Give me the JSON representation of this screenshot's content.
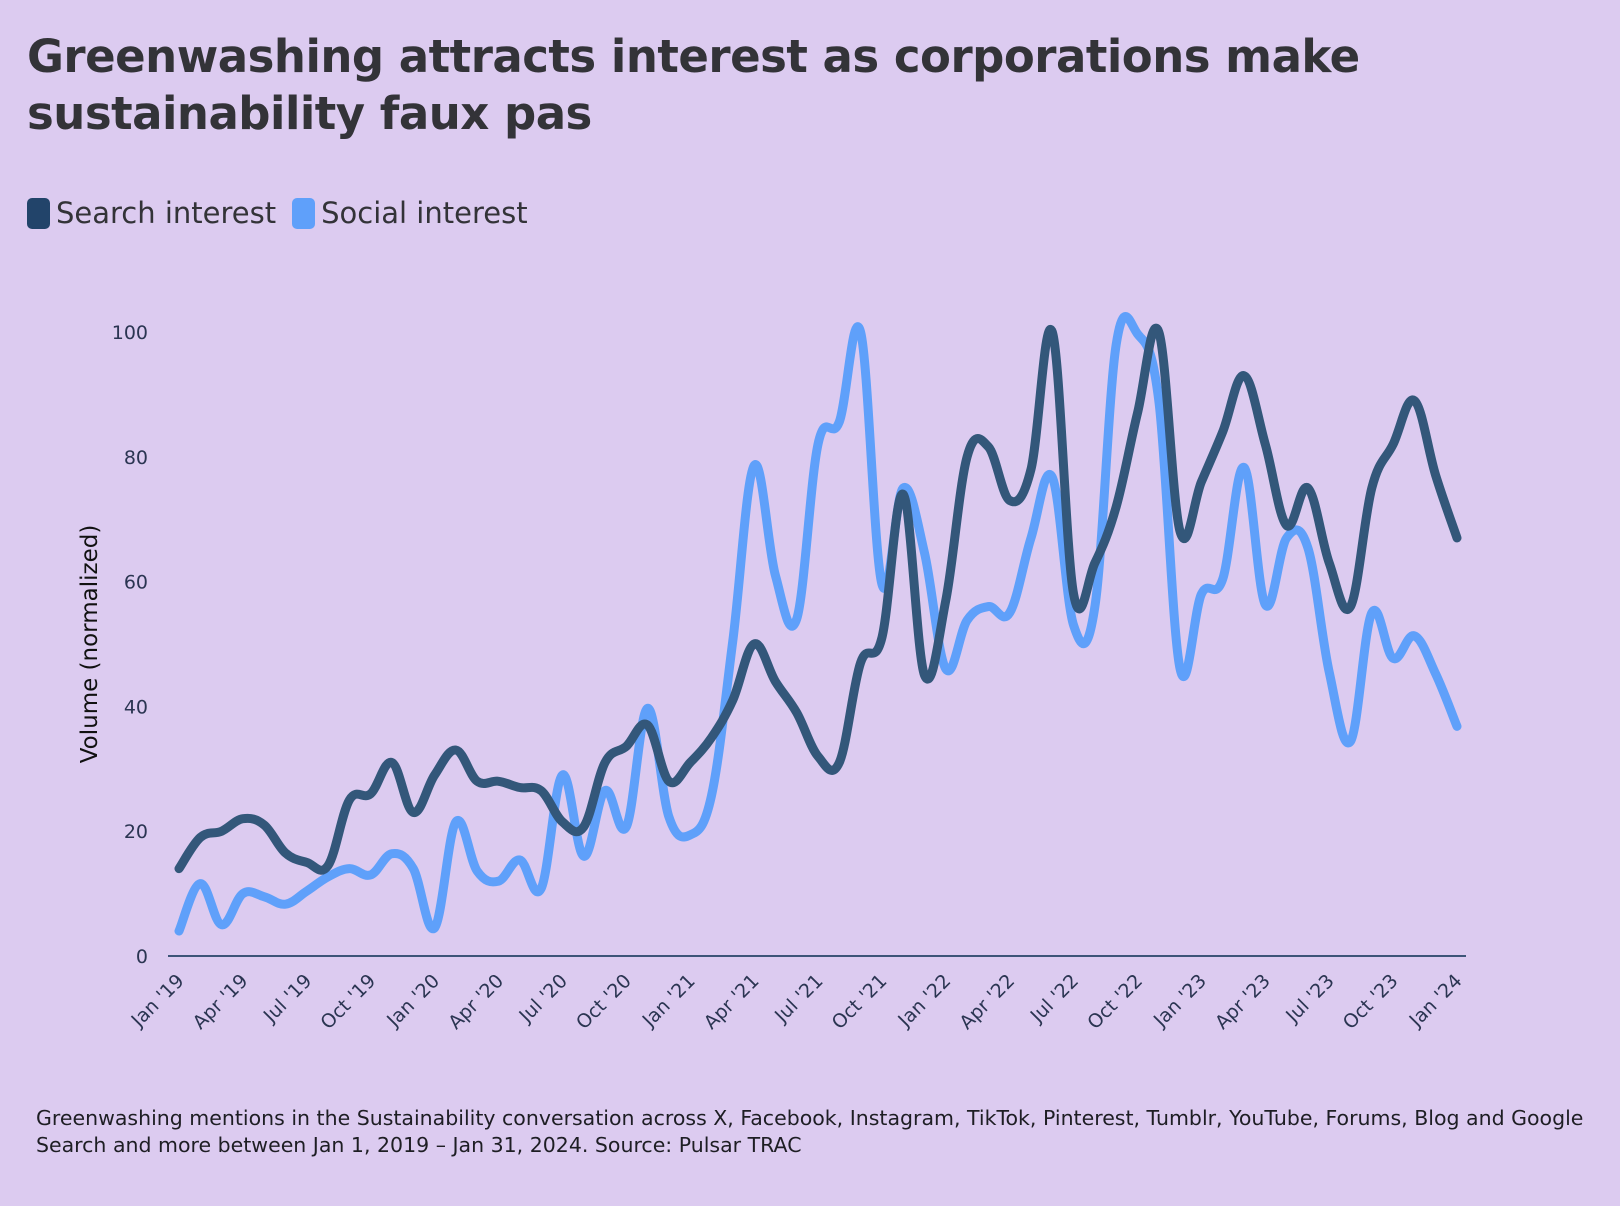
{
  "title": "Greenwashing attracts interest as corporations make sustainability faux pas",
  "legend": [
    {
      "label": "Search interest",
      "color": "#22446a"
    },
    {
      "label": "Social interest",
      "color": "#5fa0fa"
    }
  ],
  "footer": "Greenwashing mentions in the Sustainability conversation across X, Facebook, Instagram, TikTok, Pinterest, Tumblr, YouTube, Forums, Blog and Google Search and more between Jan 1, 2019 – Jan 31, 2024. Source: Pulsar TRAC",
  "chart_data": {
    "type": "line",
    "title": "Greenwashing attracts interest as corporations make sustainability faux pas",
    "xlabel": "",
    "ylabel": "Volume (normalized)",
    "ylim": [
      0,
      100
    ],
    "yticks": [
      0,
      20,
      40,
      60,
      80,
      100
    ],
    "grid": false,
    "legend_position": "top-left",
    "x_start": "2019-01",
    "x_end": "2024-01",
    "x_tick_labels": [
      "Jan '19",
      "Apr '19",
      "Jul '19",
      "Oct '19",
      "Jan '20",
      "Apr '20",
      "Jul '20",
      "Oct '20",
      "Jan '21",
      "Apr '21",
      "Jul '21",
      "Oct '21",
      "Jan '22",
      "Apr '22",
      "Jul '22",
      "Oct '22",
      "Jan '23",
      "Apr '23",
      "Jul '23",
      "Oct '23",
      "Jan '24"
    ],
    "series": [
      {
        "name": "Search interest",
        "color": "#33577a",
        "values": [
          14,
          19,
          20,
          22,
          21,
          16.5,
          15,
          14.5,
          25,
          26,
          31,
          23,
          29,
          33,
          28,
          28,
          27,
          26.5,
          21.5,
          20.7,
          31,
          33.6,
          37,
          28,
          31,
          35,
          41,
          50,
          44,
          39,
          32,
          31,
          47,
          51,
          74,
          45,
          57,
          80,
          81.6,
          73,
          78,
          100,
          58,
          63,
          72,
          87,
          100,
          68,
          76,
          84,
          93,
          82,
          69,
          75,
          63,
          56,
          75,
          82,
          89,
          77,
          67
        ]
      },
      {
        "name": "Social interest",
        "color": "#5fa0fa",
        "values": [
          4,
          11.6,
          5,
          10,
          9.5,
          8.3,
          10.4,
          12.7,
          14,
          13,
          16.4,
          14,
          4.5,
          21.5,
          13.6,
          12,
          15.4,
          10.8,
          29,
          16,
          26.5,
          20.7,
          39.7,
          22.3,
          19.4,
          25.7,
          50.5,
          78.6,
          61,
          54,
          82,
          85.6,
          100,
          59.6,
          75,
          64.6,
          46,
          53.8,
          56,
          55,
          67,
          76.7,
          53,
          56,
          98,
          99.7,
          89,
          46,
          58,
          60.4,
          78.3,
          56.3,
          67,
          65.4,
          45.5,
          34.4,
          55,
          47.7,
          51.3,
          45.2,
          36.8
        ]
      }
    ]
  }
}
